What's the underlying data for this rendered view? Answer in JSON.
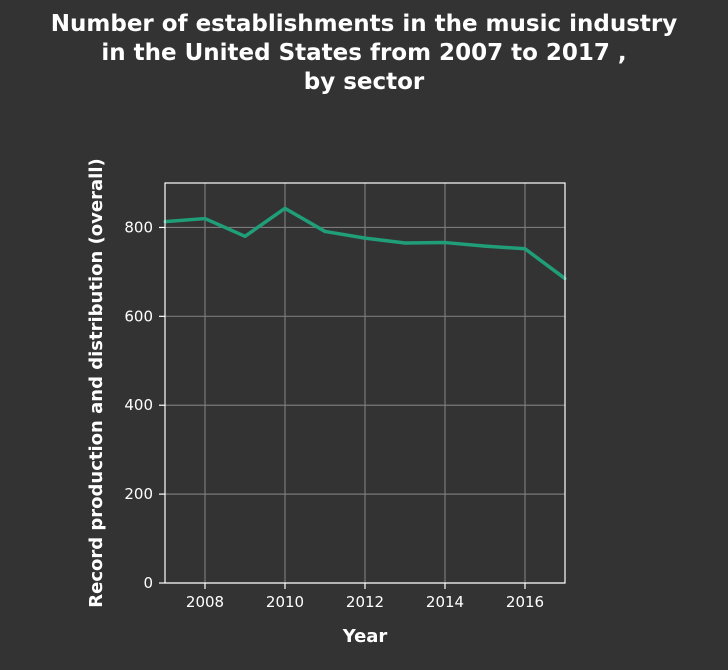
{
  "colors": {
    "background": "#333333",
    "plot_background": "#333333",
    "line": "#1f9e78",
    "grid": "#7a7a7a",
    "text": "#ffffff"
  },
  "chart_data": {
    "type": "line",
    "title": "Number of establishments in the music industry in the United States from 2007 to 2017 , by sector",
    "title_lines": [
      "Number of establishments in the music industry",
      "in the United States from 2007 to 2017 ,",
      "by sector"
    ],
    "xlabel": "Year",
    "ylabel": "Record production and distribution (overall)",
    "x": [
      2007,
      2008,
      2009,
      2010,
      2011,
      2012,
      2013,
      2014,
      2015,
      2016,
      2017
    ],
    "series": [
      {
        "values": [
          813,
          820,
          780,
          843,
          791,
          776,
          765,
          766,
          758,
          752,
          685
        ]
      }
    ],
    "xlim": [
      2007,
      2017
    ],
    "ylim": [
      0,
      900
    ],
    "xticks": [
      2008,
      2010,
      2012,
      2014,
      2016
    ],
    "yticks": [
      0,
      200,
      400,
      600,
      800
    ],
    "grid": true,
    "legend": "none"
  }
}
